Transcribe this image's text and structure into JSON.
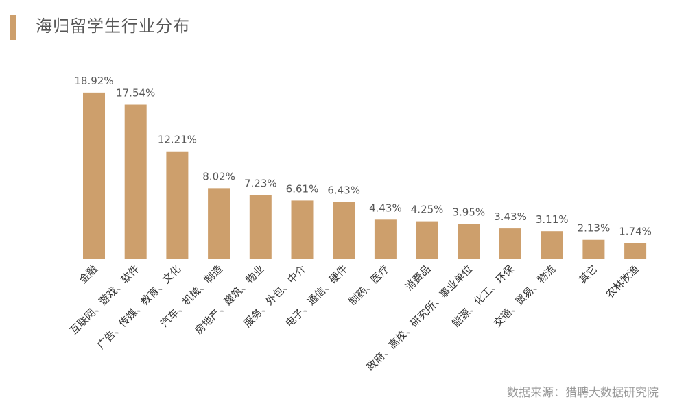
{
  "title": "海归留学生行业分布",
  "source": "数据来源：猎聘大数据研究院",
  "chart_data": {
    "type": "bar",
    "categories": [
      "金融",
      "互联网、游戏、软件",
      "广告、传媒、教育、文化",
      "汽车、机械、制造",
      "房地产、建筑、物业",
      "服务、外包、中介",
      "电子、通信、硬件",
      "制药、医疗",
      "消费品",
      "政府、高校、研究所、事业单位",
      "能源、化工、环保",
      "交通、贸易、物流",
      "其它",
      "农林牧渔"
    ],
    "values": [
      18.92,
      17.54,
      12.21,
      8.02,
      7.23,
      6.61,
      6.43,
      4.43,
      4.25,
      3.95,
      3.43,
      3.11,
      2.13,
      1.74
    ],
    "data_labels": [
      "18.92%",
      "17.54%",
      "12.21%",
      "8.02%",
      "7.23%",
      "6.61%",
      "6.43%",
      "4.43%",
      "4.25%",
      "3.95%",
      "3.43%",
      "3.11%",
      "2.13%",
      "1.74%"
    ],
    "ylim": [
      0,
      20
    ],
    "grid": false,
    "legend": "none",
    "bar_color": "#cd9f6c",
    "axis_color": "#d9d9d9",
    "label_color": "#555555"
  }
}
